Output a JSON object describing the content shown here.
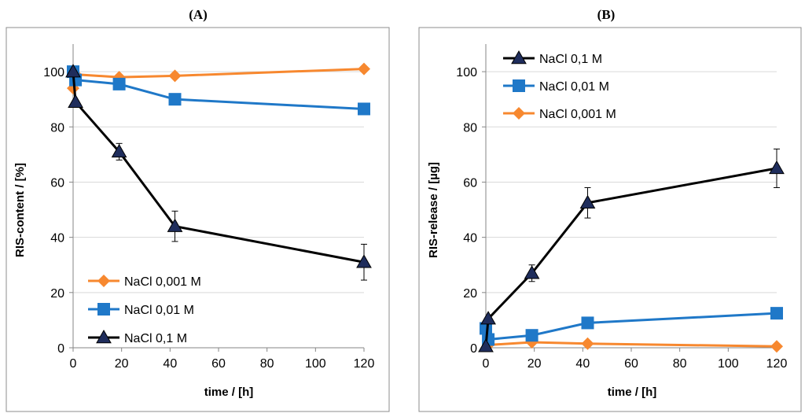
{
  "colors": {
    "frame": "#8c8c8c",
    "gridline": "#d9d9d9",
    "axis": "#868686",
    "nacl_0001": "#f7882f",
    "nacl_001": "#1f78c8",
    "nacl_01": "#000000",
    "marker_01_fill": "#1f2d5c"
  },
  "chart_data": [
    {
      "type": "line",
      "panel_label": "(A)",
      "title": "",
      "xlabel": "time / [h]",
      "ylabel": "RIS-content / [%]",
      "xlim": [
        0,
        120
      ],
      "ylim": [
        0,
        110
      ],
      "x_ticks": [
        0,
        20,
        40,
        60,
        80,
        100,
        120
      ],
      "y_ticks": [
        0,
        20,
        40,
        60,
        80,
        100
      ],
      "grid": "horizontal",
      "legend_position": "bottom-left",
      "legend_order": [
        0,
        1,
        2
      ],
      "series": [
        {
          "name": "NaCl 0,001 M",
          "color_key": "nacl_0001",
          "marker": "diamond",
          "x": [
            0,
            1,
            19,
            42,
            120
          ],
          "y": [
            94,
            99,
            98,
            98.5,
            101
          ],
          "err": [
            0,
            0,
            0,
            0,
            0
          ]
        },
        {
          "name": "NaCl 0,01 M",
          "color_key": "nacl_001",
          "marker": "square",
          "x": [
            0,
            1,
            19,
            42,
            120
          ],
          "y": [
            100,
            97,
            95.5,
            90,
            86.5
          ],
          "err": [
            0,
            0,
            0,
            0,
            0
          ]
        },
        {
          "name": "NaCl 0,1 M",
          "color_key": "nacl_01",
          "marker": "triangle",
          "x": [
            0,
            1,
            19,
            42,
            120
          ],
          "y": [
            100,
            89,
            71,
            44,
            31
          ],
          "err": [
            0,
            0,
            3,
            5.5,
            6.5
          ]
        }
      ]
    },
    {
      "type": "line",
      "panel_label": "(B)",
      "title": "",
      "xlabel": "time / [h]",
      "ylabel": "RIS-release / [µg]",
      "xlim": [
        0,
        120
      ],
      "ylim": [
        0,
        110
      ],
      "x_ticks": [
        0,
        20,
        40,
        60,
        80,
        100,
        120
      ],
      "y_ticks": [
        0,
        20,
        40,
        60,
        80,
        100
      ],
      "grid": "horizontal",
      "legend_position": "top-left",
      "legend_order": [
        2,
        1,
        0
      ],
      "series": [
        {
          "name": "NaCl 0,001 M",
          "color_key": "nacl_0001",
          "marker": "diamond",
          "x": [
            0,
            1,
            19,
            42,
            120
          ],
          "y": [
            6,
            1,
            2,
            1.5,
            0.5
          ],
          "err": [
            0,
            0,
            0,
            0,
            0
          ]
        },
        {
          "name": "NaCl 0,01 M",
          "color_key": "nacl_001",
          "marker": "square",
          "x": [
            0,
            1,
            19,
            42,
            120
          ],
          "y": [
            7,
            3,
            4.5,
            9,
            12.5
          ],
          "err": [
            0,
            0,
            0,
            0,
            0
          ]
        },
        {
          "name": "NaCl 0,1 M",
          "color_key": "nacl_01",
          "marker": "triangle",
          "x": [
            0,
            1,
            19,
            42,
            120
          ],
          "y": [
            0.5,
            10.5,
            27,
            52.5,
            65
          ],
          "err": [
            0,
            0,
            3,
            5.5,
            7
          ]
        }
      ]
    }
  ]
}
